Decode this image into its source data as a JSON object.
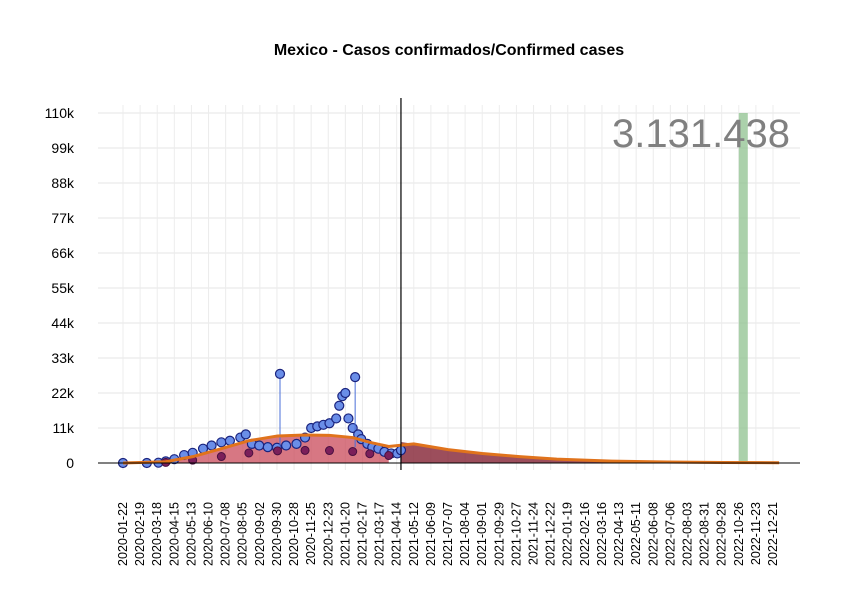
{
  "chart_data": {
    "type": "scatter",
    "title": "Mexico - Casos confirmados/Confirmed cases",
    "xlabel": "",
    "ylabel": "",
    "x_range": [
      "2020-01-22",
      "2022-12-31"
    ],
    "ylim": [
      0,
      110000
    ],
    "y_ticks": [
      0,
      11000,
      22000,
      33000,
      44000,
      55000,
      66000,
      77000,
      88000,
      99000,
      110000
    ],
    "y_tick_labels": [
      "0",
      "11k",
      "22k",
      "33k",
      "44k",
      "55k",
      "66k",
      "77k",
      "88k",
      "99k",
      "110k"
    ],
    "x_tick_labels": [
      "2020-01-22",
      "2020-02-19",
      "2020-03-18",
      "2020-04-15",
      "2020-05-13",
      "2020-06-10",
      "2020-07-08",
      "2020-08-05",
      "2020-09-02",
      "2020-09-30",
      "2020-10-28",
      "2020-11-25",
      "2020-12-23",
      "2021-01-20",
      "2021-02-17",
      "2021-03-17",
      "2021-04-14",
      "2021-05-12",
      "2021-06-09",
      "2021-07-07",
      "2021-08-04",
      "2021-09-01",
      "2021-09-29",
      "2021-10-27",
      "2021-11-24",
      "2021-12-22",
      "2022-01-19",
      "2022-02-16",
      "2022-03-16",
      "2022-04-13",
      "2022-05-11",
      "2022-06-08",
      "2022-07-06",
      "2022-08-03",
      "2022-08-31",
      "2022-09-28",
      "2022-10-26",
      "2022-11-23",
      "2022-12-21"
    ],
    "total_label": "3.131.438",
    "cutoff_date": "2021-04-21",
    "highlight_band": {
      "start": "2022-10-26",
      "end": "2022-11-01"
    },
    "grid": true,
    "colors": {
      "daily_points_fill": "#6a8ee8",
      "daily_points_stroke": "#1a237e",
      "lower_points_fill": "#7b1f5a",
      "trend_line": "#e0731c",
      "area_fill": "#c94a5a",
      "forecast_area": "#8b2f3f",
      "band": "#8fc28f",
      "cutoff_line": "#000000",
      "total_text": "#808080"
    },
    "series": [
      {
        "type": "daily_points",
        "x": [
          "2020-01-22",
          "2020-03-01",
          "2020-03-20",
          "2020-04-01",
          "2020-04-15",
          "2020-05-01",
          "2020-05-15",
          "2020-06-01",
          "2020-06-15",
          "2020-07-01",
          "2020-07-15",
          "2020-08-01",
          "2020-08-10",
          "2020-08-20",
          "2020-09-01",
          "2020-09-15",
          "2020-09-30",
          "2020-10-05",
          "2020-10-15",
          "2020-11-01",
          "2020-11-15",
          "2020-11-25",
          "2020-12-05",
          "2020-12-15",
          "2020-12-25",
          "2021-01-05",
          "2021-01-10",
          "2021-01-15",
          "2021-01-20",
          "2021-01-25",
          "2021-02-01",
          "2021-02-05",
          "2021-02-10",
          "2021-02-15",
          "2021-02-25",
          "2021-03-05",
          "2021-03-15",
          "2021-03-25",
          "2021-04-05",
          "2021-04-15",
          "2021-04-21"
        ],
        "y": [
          0,
          0,
          100,
          500,
          1200,
          2500,
          3200,
          4500,
          5500,
          6500,
          7000,
          8000,
          9000,
          6000,
          5500,
          5000,
          4800,
          28000,
          5500,
          6000,
          8000,
          11000,
          11500,
          12000,
          12500,
          14000,
          18000,
          21000,
          22000,
          14000,
          11000,
          27000,
          9000,
          7500,
          6000,
          5000,
          4500,
          3500,
          3000,
          3000,
          4000
        ]
      },
      {
        "type": "trend",
        "x": [
          "2020-01-22",
          "2020-04-01",
          "2020-05-15",
          "2020-07-01",
          "2020-08-15",
          "2020-10-01",
          "2020-11-15",
          "2020-12-25",
          "2021-02-01",
          "2021-03-01",
          "2021-04-01",
          "2021-05-12",
          "2021-07-07",
          "2021-09-01",
          "2021-11-01",
          "2022-01-01",
          "2022-04-01",
          "2022-07-01",
          "2022-10-01",
          "2022-12-31"
        ],
        "y": [
          0,
          400,
          2000,
          4500,
          7000,
          8500,
          8800,
          8700,
          8000,
          6500,
          5200,
          6000,
          4200,
          3000,
          2000,
          1200,
          600,
          300,
          150,
          80
        ]
      }
    ]
  }
}
